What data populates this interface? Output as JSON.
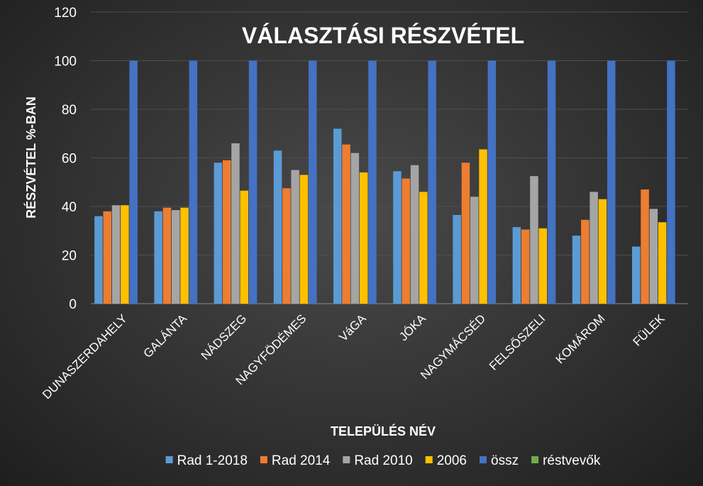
{
  "chart_data": {
    "type": "bar",
    "title": "VÁLASZTÁSI RÉSZVÉTEL",
    "xlabel": "TELEPÜLÉS NÉV",
    "ylabel": "RÉSZVÉTEL %-BAN",
    "ylim": [
      0,
      120
    ],
    "yticks": [
      0,
      20,
      40,
      60,
      80,
      100,
      120
    ],
    "grid": true,
    "legend_position": "bottom",
    "categories": [
      "DUNASZERDAHELY",
      "GALÁNTA",
      "NÁDSZEG",
      "NAGYFÖDÉMES",
      "VáGA",
      "JÓKA",
      "NAGYMÁCSÉD",
      "FELSŐSZELI",
      "KOMÁROM",
      "FÜLEK"
    ],
    "series": [
      {
        "name": "Rad 1-2018",
        "color": "#5b9bd5",
        "values": [
          36,
          38,
          58,
          63,
          72,
          54.5,
          36.5,
          31.5,
          28,
          23.5
        ]
      },
      {
        "name": "Rad 2014",
        "color": "#ed7d31",
        "values": [
          38,
          39.5,
          59,
          47.5,
          65.5,
          51.5,
          58,
          30.5,
          34.5,
          47
        ]
      },
      {
        "name": "Rad 2010",
        "color": "#a5a5a5",
        "values": [
          40.5,
          38.5,
          66,
          55,
          62,
          57,
          44,
          52.5,
          46,
          39
        ]
      },
      {
        "name": "2006",
        "color": "#ffc000",
        "values": [
          40.5,
          39.5,
          46.5,
          53,
          54,
          46,
          63.5,
          31,
          43,
          33.5
        ]
      },
      {
        "name": "össz",
        "color": "#4472c4",
        "values": [
          100,
          100,
          100,
          100,
          100,
          100,
          100,
          100,
          100,
          100
        ]
      },
      {
        "name": "réstvevők",
        "color": "#70ad47",
        "values": [
          0,
          0,
          0,
          0,
          0,
          0,
          0,
          0,
          0,
          0
        ]
      }
    ]
  }
}
